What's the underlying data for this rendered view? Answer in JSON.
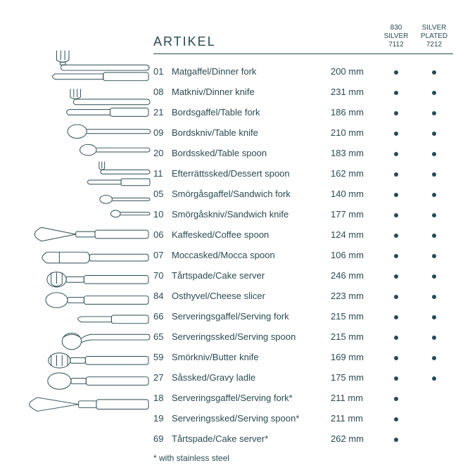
{
  "title": "ARTIKEL",
  "col1": {
    "l1": "830",
    "l2": "SILVER",
    "l3": "7112"
  },
  "col2": {
    "l1": "SILVER",
    "l2": "PLATED",
    "l3": "7212"
  },
  "items": [
    {
      "code": "01",
      "name": "Matgaffel/Dinner fork",
      "size": "200 mm",
      "d1": true,
      "d2": true
    },
    {
      "code": "08",
      "name": "Matkniv/Dinner knife",
      "size": "231 mm",
      "d1": true,
      "d2": true
    },
    {
      "code": "21",
      "name": "Bordsgaffel/Table fork",
      "size": "186 mm",
      "d1": true,
      "d2": true
    },
    {
      "code": "09",
      "name": "Bordskniv/Table knife",
      "size": "210 mm",
      "d1": true,
      "d2": true
    },
    {
      "code": "20",
      "name": "Bordssked/Table spoon",
      "size": "183 mm",
      "d1": true,
      "d2": true
    },
    {
      "code": "11",
      "name": "Efterrättssked/Dessert spoon",
      "size": "162 mm",
      "d1": true,
      "d2": true
    },
    {
      "code": "05",
      "name": "Smörgåsgaffel/Sandwich fork",
      "size": "140 mm",
      "d1": true,
      "d2": true
    },
    {
      "code": "10",
      "name": "Smörgåskniv/Sandwich knife",
      "size": "177 mm",
      "d1": true,
      "d2": true
    },
    {
      "code": "06",
      "name": "Kaffesked/Coffee spoon",
      "size": "124 mm",
      "d1": true,
      "d2": true
    },
    {
      "code": "07",
      "name": "Moccasked/Mocca spoon",
      "size": "106 mm",
      "d1": true,
      "d2": true
    },
    {
      "code": "70",
      "name": "Tårtspade/Cake server",
      "size": "246 mm",
      "d1": true,
      "d2": true
    },
    {
      "code": "84",
      "name": "Osthyvel/Cheese slicer",
      "size": "223 mm",
      "d1": true,
      "d2": true
    },
    {
      "code": "66",
      "name": "Serveringsgaffel/Serving fork",
      "size": "215 mm",
      "d1": true,
      "d2": true
    },
    {
      "code": "65",
      "name": "Serveringssked/Serving spoon",
      "size": "215 mm",
      "d1": true,
      "d2": true
    },
    {
      "code": "59",
      "name": "Smörkniv/Butter knife",
      "size": "169 mm",
      "d1": true,
      "d2": true
    },
    {
      "code": "27",
      "name": "Såssked/Gravy ladle",
      "size": "175 mm",
      "d1": true,
      "d2": true
    },
    {
      "code": "18",
      "name": "Serveringsgaffel/Serving fork*",
      "size": "211 mm",
      "d1": true,
      "d2": false
    },
    {
      "code": "19",
      "name": "Serveringssked/Serving spoon*",
      "size": "211 mm",
      "d1": true,
      "d2": false
    },
    {
      "code": "69",
      "name": "Tårtspade/Cake server*",
      "size": "262 mm",
      "d1": true,
      "d2": false
    }
  ],
  "footnote": "* with stainless steel",
  "colors": {
    "text": "#2a4a52",
    "stroke": "#2a4a52",
    "bg": "#ffffff"
  }
}
